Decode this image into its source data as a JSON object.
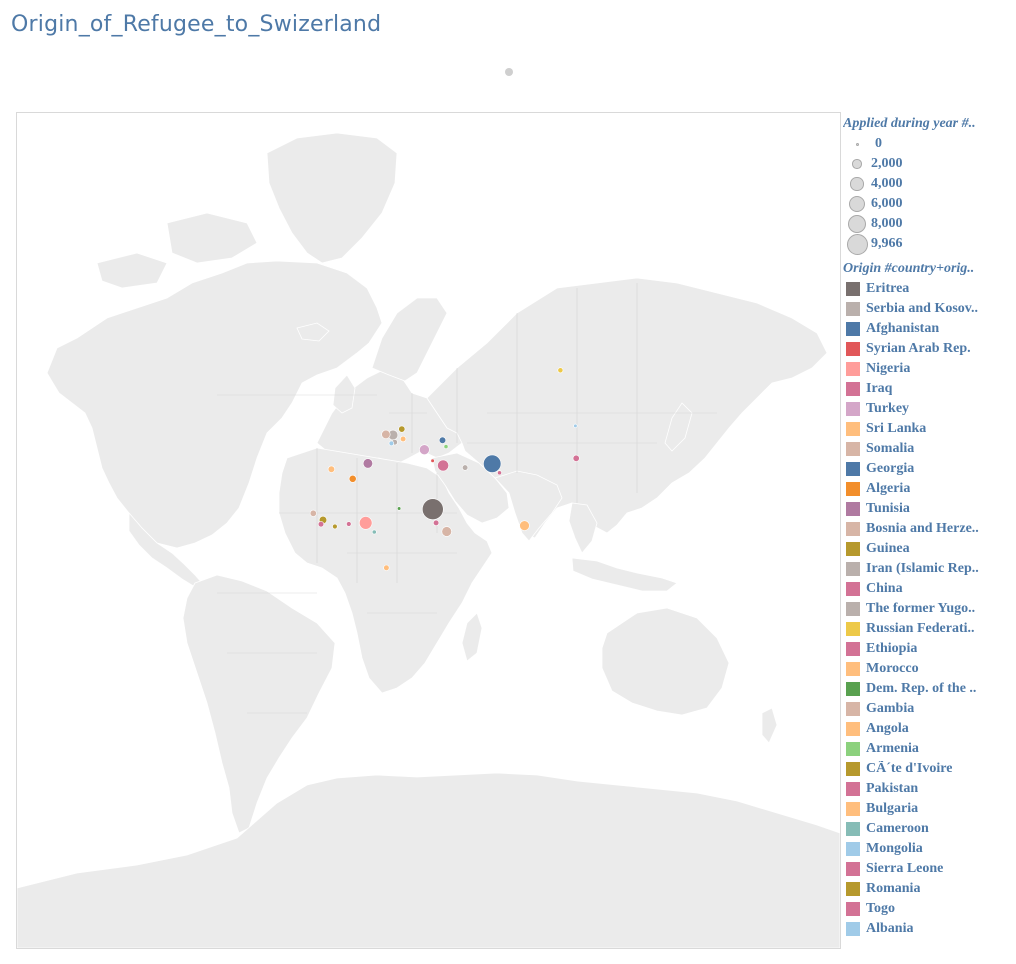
{
  "title": "Origin_of_Refugee_to_Swizerland",
  "legend": {
    "size_title": "Applied during year #..",
    "size_items": [
      {
        "label": "0",
        "value": 0
      },
      {
        "label": "2,000",
        "value": 2000
      },
      {
        "label": "4,000",
        "value": 4000
      },
      {
        "label": "6,000",
        "value": 6000
      },
      {
        "label": "8,000",
        "value": 8000
      },
      {
        "label": "9,966",
        "value": 9966
      }
    ],
    "color_title": "Origin #country+orig..",
    "color_items": [
      {
        "label": "Eritrea",
        "color": "#79706e"
      },
      {
        "label": "Serbia and Kosov..",
        "color": "#bab0ac"
      },
      {
        "label": "Afghanistan",
        "color": "#4e79a7"
      },
      {
        "label": "Syrian Arab Rep.",
        "color": "#e15759"
      },
      {
        "label": "Nigeria",
        "color": "#ff9d9a"
      },
      {
        "label": "Iraq",
        "color": "#d37295"
      },
      {
        "label": "Turkey",
        "color": "#d4a6c8"
      },
      {
        "label": "Sri Lanka",
        "color": "#ffbe7d"
      },
      {
        "label": "Somalia",
        "color": "#d7b5a6"
      },
      {
        "label": "Georgia",
        "color": "#4e79a7"
      },
      {
        "label": "Algeria",
        "color": "#f28e2b"
      },
      {
        "label": "Tunisia",
        "color": "#b07aa1"
      },
      {
        "label": "Bosnia and Herze..",
        "color": "#d7b5a6"
      },
      {
        "label": "Guinea",
        "color": "#b6992d"
      },
      {
        "label": "Iran (Islamic Rep..",
        "color": "#bab0ac"
      },
      {
        "label": "China",
        "color": "#d37295"
      },
      {
        "label": "The former Yugo..",
        "color": "#bab0ac"
      },
      {
        "label": "Russian Federati..",
        "color": "#edc948"
      },
      {
        "label": "Ethiopia",
        "color": "#d37295"
      },
      {
        "label": "Morocco",
        "color": "#ffbe7d"
      },
      {
        "label": "Dem. Rep. of the ..",
        "color": "#59a14f"
      },
      {
        "label": "Gambia",
        "color": "#d7b5a6"
      },
      {
        "label": "Angola",
        "color": "#ffbe7d"
      },
      {
        "label": "Armenia",
        "color": "#8cd17d"
      },
      {
        "label": "CÃ´te d'Ivoire",
        "color": "#b6992d"
      },
      {
        "label": "Pakistan",
        "color": "#d37295"
      },
      {
        "label": "Bulgaria",
        "color": "#ffbe7d"
      },
      {
        "label": "Cameroon",
        "color": "#86bcb6"
      },
      {
        "label": "Mongolia",
        "color": "#a0cbe8"
      },
      {
        "label": "Sierra Leone",
        "color": "#d37295"
      },
      {
        "label": "Romania",
        "color": "#b6992d"
      },
      {
        "label": "Togo",
        "color": "#d37295"
      },
      {
        "label": "Albania",
        "color": "#a0cbe8"
      }
    ]
  },
  "map": {
    "land_color": "#ebebeb",
    "border_color": "#c8c8c8",
    "marks": [
      {
        "origin": "Eritrea",
        "lon": 39.0,
        "lat": 15.2,
        "applications": 9966,
        "color": "#79706e"
      },
      {
        "origin": "Afghanistan",
        "lon": 66.0,
        "lat": 33.9,
        "applications": 7000,
        "color": "#4e79a7"
      },
      {
        "origin": "Nigeria",
        "lon": 8.5,
        "lat": 9.1,
        "applications": 3700,
        "color": "#ff9d9a"
      },
      {
        "origin": "Sri Lanka",
        "lon": 80.7,
        "lat": 7.9,
        "applications": 2200,
        "color": "#ffbe7d"
      },
      {
        "origin": "Iraq",
        "lon": 43.7,
        "lat": 33.2,
        "applications": 2800,
        "color": "#d37295"
      },
      {
        "origin": "Somalia",
        "lon": 45.3,
        "lat": 5.2,
        "applications": 2200,
        "color": "#d7b5a6"
      },
      {
        "origin": "Tunisia",
        "lon": 9.5,
        "lat": 34.0,
        "applications": 2100,
        "color": "#b07aa1"
      },
      {
        "origin": "Turkey",
        "lon": 35.2,
        "lat": 39.0,
        "applications": 2300,
        "color": "#d4a6c8"
      },
      {
        "origin": "Serbia and Kosov..",
        "lon": 20.9,
        "lat": 44.0,
        "applications": 2200,
        "color": "#bab0ac"
      },
      {
        "origin": "Bosnia and Herze..",
        "lon": 17.7,
        "lat": 44.2,
        "applications": 1700,
        "color": "#d7b5a6"
      },
      {
        "origin": "Algeria",
        "lon": 2.6,
        "lat": 28.0,
        "applications": 1200,
        "color": "#f28e2b"
      },
      {
        "origin": "Guinea",
        "lon": -10.9,
        "lat": 10.4,
        "applications": 1300,
        "color": "#b6992d"
      },
      {
        "origin": "Gambia",
        "lon": -15.3,
        "lat": 13.4,
        "applications": 900,
        "color": "#d7b5a6"
      },
      {
        "origin": "Morocco",
        "lon": -7.1,
        "lat": 31.8,
        "applications": 1000,
        "color": "#ffbe7d"
      },
      {
        "origin": "Georgia",
        "lon": 43.4,
        "lat": 42.3,
        "applications": 1000,
        "color": "#4e79a7"
      },
      {
        "origin": "China",
        "lon": 104.2,
        "lat": 35.9,
        "applications": 900,
        "color": "#d37295"
      },
      {
        "origin": "Romania",
        "lon": 24.9,
        "lat": 45.9,
        "applications": 900,
        "color": "#b6992d"
      },
      {
        "origin": "Iran (Islamic Rep..",
        "lon": 53.7,
        "lat": 32.4,
        "applications": 700,
        "color": "#bab0ac"
      },
      {
        "origin": "Bulgaria",
        "lon": 25.5,
        "lat": 42.7,
        "applications": 700,
        "color": "#ffbe7d"
      },
      {
        "origin": "The former Yugo..",
        "lon": 21.7,
        "lat": 41.6,
        "applications": 700,
        "color": "#bab0ac"
      },
      {
        "origin": "Angola",
        "lon": 17.9,
        "lat": -11.2,
        "applications": 700,
        "color": "#ffbe7d"
      },
      {
        "origin": "Russian Federati..",
        "lon": 97.0,
        "lat": 61.5,
        "applications": 600,
        "color": "#edc948"
      },
      {
        "origin": "Sierra Leone",
        "lon": -11.8,
        "lat": 8.5,
        "applications": 700,
        "color": "#d37295"
      },
      {
        "origin": "Ethiopia",
        "lon": 40.5,
        "lat": 9.1,
        "applications": 700,
        "color": "#d37295"
      },
      {
        "origin": "Albania",
        "lon": 20.2,
        "lat": 41.2,
        "applications": 500,
        "color": "#a0cbe8"
      },
      {
        "origin": "CÃ´te d'Ivoire",
        "lon": -5.5,
        "lat": 7.5,
        "applications": 500,
        "color": "#b6992d"
      },
      {
        "origin": "Togo",
        "lon": 0.8,
        "lat": 8.6,
        "applications": 500,
        "color": "#d37295"
      },
      {
        "origin": "Armenia",
        "lon": 45.0,
        "lat": 40.1,
        "applications": 400,
        "color": "#8cd17d"
      },
      {
        "origin": "Cameroon",
        "lon": 12.4,
        "lat": 5.0,
        "applications": 400,
        "color": "#86bcb6"
      },
      {
        "origin": "Pakistan",
        "lon": 69.3,
        "lat": 30.4,
        "applications": 400,
        "color": "#d37295"
      },
      {
        "origin": "Dem. Rep. of the ..",
        "lon": 23.7,
        "lat": 15.5,
        "applications": 300,
        "color": "#59a14f"
      },
      {
        "origin": "Mongolia",
        "lon": 103.8,
        "lat": 46.9,
        "applications": 300,
        "color": "#a0cbe8"
      },
      {
        "origin": "Syrian Arab Rep.",
        "lon": 38.9,
        "lat": 35.0,
        "applications": 300,
        "color": "#e15759"
      }
    ]
  }
}
